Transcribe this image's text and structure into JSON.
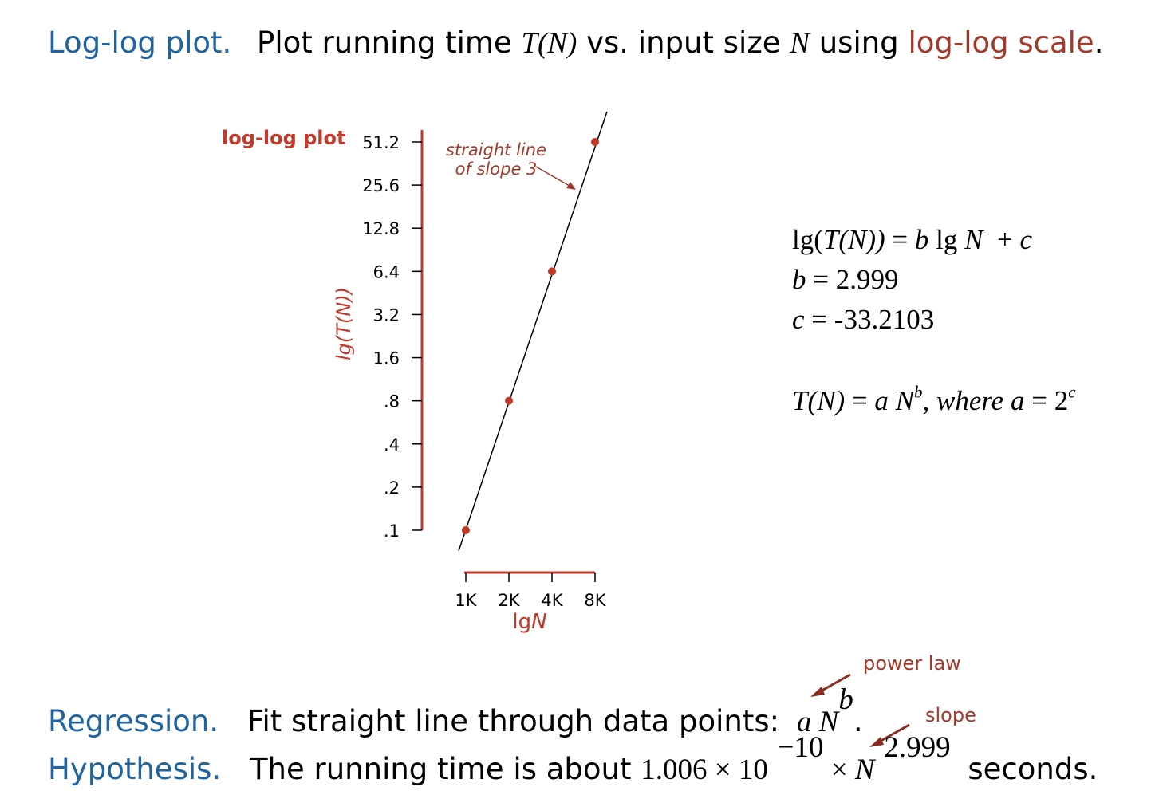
{
  "header": {
    "term": "Log-log plot.",
    "text_1": "Plot running time",
    "var_T": "T",
    "paren_N": "(N)",
    "text_2": "vs. input size",
    "var_N": "N",
    "text_3": "using",
    "highlight": "log-log scale",
    "end": "."
  },
  "chart_data": {
    "type": "scatter",
    "title": "log-log plot",
    "ylabel": "lg(T(N))",
    "xlabel": "lgN",
    "x_ticks": [
      "1K",
      "2K",
      "4K",
      "8K"
    ],
    "y_ticks": [
      ".1",
      ".2",
      ".4",
      ".8",
      "1.6",
      "3.2",
      "6.4",
      "12.8",
      "25.6",
      "51.2"
    ],
    "y_tick_values": [
      0.1,
      0.2,
      0.4,
      0.8,
      1.6,
      3.2,
      6.4,
      12.8,
      25.6,
      51.2
    ],
    "x_scale": "log2",
    "y_scale": "log2",
    "points": [
      {
        "x": 1000,
        "y": 0.1
      },
      {
        "x": 2000,
        "y": 0.8
      },
      {
        "x": 4000,
        "y": 6.4
      },
      {
        "x": 8000,
        "y": 51.2
      }
    ],
    "fit_line": {
      "slope": 3
    },
    "annotation": {
      "line1": "straight line",
      "line2": "of slope 3"
    },
    "colors": {
      "axis": "#c0392b",
      "point": "#c0392b",
      "line": "#000000"
    }
  },
  "equations": {
    "eq1": {
      "lg": "lg(",
      "T": "T",
      "N": "(N))",
      "eq": " = ",
      "b": "b",
      "lg2": " lg ",
      "N2": "N",
      "plus": "  + ",
      "c": "c"
    },
    "eq2": {
      "b": "b",
      "rest": " = 2.999"
    },
    "eq3": {
      "c": "c",
      "rest": " = -33.2103"
    },
    "eq4": {
      "T": "T",
      "N": "(N)",
      "eq": " = ",
      "a": "a",
      "N2": " N",
      "b": "b",
      "where": ", where ",
      "a2": "a",
      "rest": " = 2",
      "c": "c"
    }
  },
  "callouts": {
    "power_law": "power law",
    "slope": "slope"
  },
  "bottom": {
    "regression_term": "Regression.",
    "regression_text": "Fit straight line through data points:",
    "regression_a": "a",
    "regression_N": " N",
    "regression_b": "b",
    "regression_end": ".",
    "hypothesis_term": "Hypothesis.",
    "hypothesis_text": "The running time is about",
    "hypothesis_coef": "1.006 × 10",
    "hypothesis_exp": "−10",
    "hypothesis_times": " × ",
    "hypothesis_N": "N",
    "hypothesis_pow": "2.999",
    "hypothesis_end": "seconds."
  }
}
